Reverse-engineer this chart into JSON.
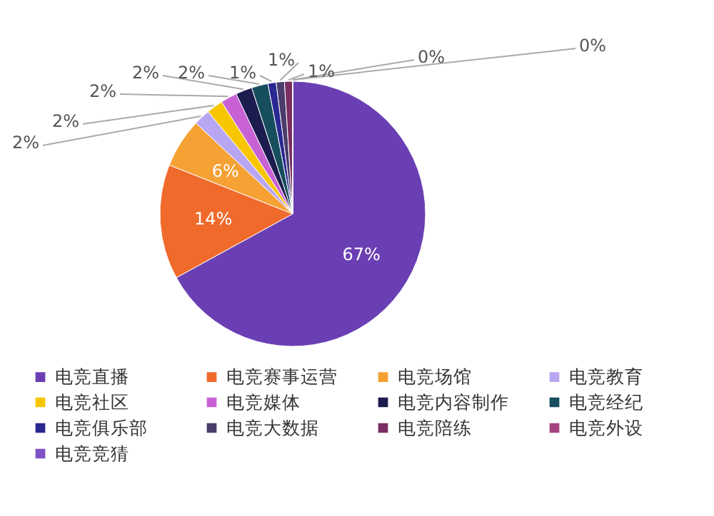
{
  "chart_data": {
    "type": "pie",
    "categories": [
      "电竞直播",
      "电竞赛事运营",
      "电竞场馆",
      "电竞教育",
      "电竞社区",
      "电竞媒体",
      "电竞内容制作",
      "电竞经纪",
      "电竞俱乐部",
      "电竞大数据",
      "电竞陪练",
      "电竞外设",
      "电竞竞猜"
    ],
    "values": [
      67,
      14,
      6,
      2,
      2,
      2,
      2,
      2,
      1,
      1,
      1,
      0,
      0
    ],
    "colors": [
      "#6a3fb3",
      "#f06a2c",
      "#f5a133",
      "#b9a6f2",
      "#f7c600",
      "#c862d4",
      "#1c1c4e",
      "#164e5e",
      "#2a2891",
      "#4a3c6c",
      "#7a2e62",
      "#a3437f",
      "#7f52c6"
    ],
    "value_labels": [
      "67%",
      "14%",
      "6%",
      "2%",
      "2%",
      "2%",
      "2%",
      "2%",
      "1%",
      "1%",
      "1%",
      "0%",
      "0%"
    ],
    "legend": "bottom"
  }
}
